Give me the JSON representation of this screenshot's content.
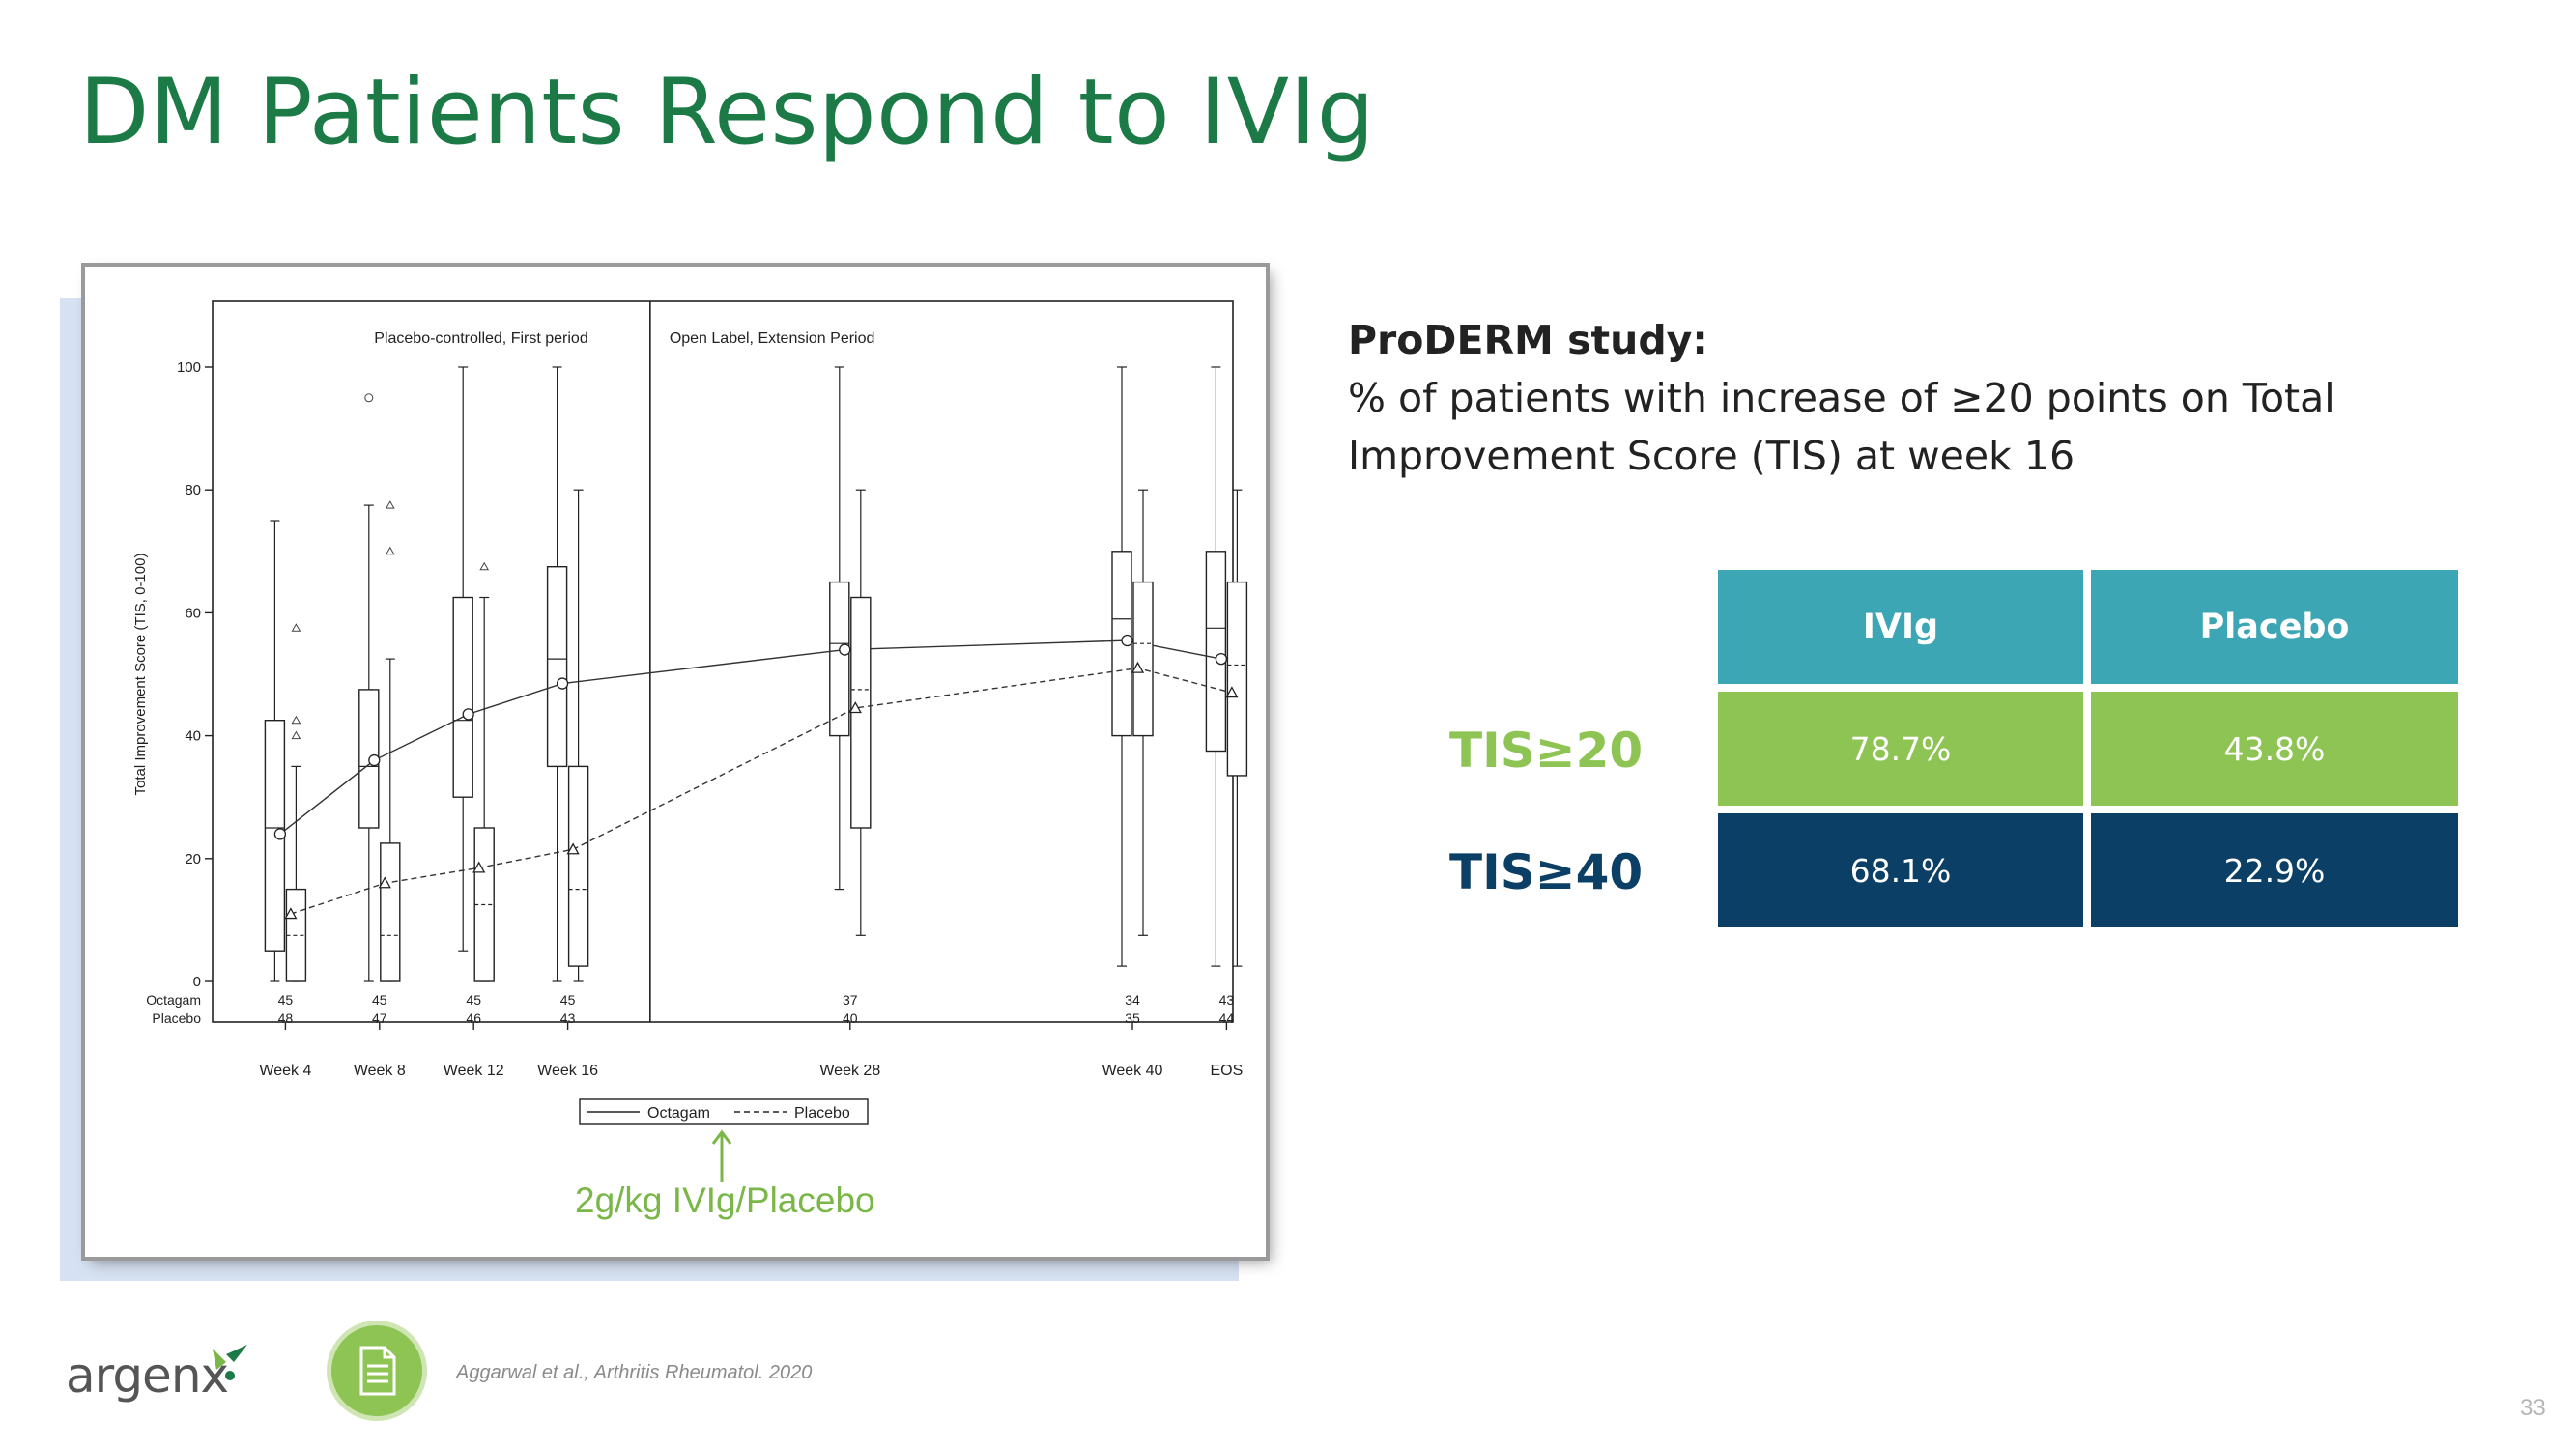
{
  "slide": {
    "title": "DM Patients Respond to IVIg",
    "page_number": "33",
    "logo_text": "argenx",
    "citation": "Aggarwal et al., Arthritis Rheumatol. 2020",
    "doc_icon": "document-icon",
    "annotation": "2g/kg IVIg/Placebo"
  },
  "study": {
    "heading": "ProDERM study:",
    "description": "% of patients with increase of ≥20 points on Total Improvement Score (TIS) at week 16"
  },
  "table": {
    "headers": [
      "IVIg",
      "Placebo"
    ],
    "rows": [
      {
        "label": "TIS≥20",
        "values": [
          "78.7%",
          "43.8%"
        ]
      },
      {
        "label": "TIS≥40",
        "values": [
          "68.1%",
          "22.9%"
        ]
      }
    ]
  },
  "colors": {
    "title_green": "#1b7a45",
    "header_teal": "#3da6b4",
    "row1_green": "#8ec454",
    "row2_navy": "#0c3f66",
    "annotation_green": "#7ab648"
  },
  "chart_data": {
    "type": "box",
    "ylabel": "Total Improvement Score (TIS, 0-100)",
    "ylim": [
      0,
      100
    ],
    "yticks": [
      0,
      20,
      40,
      60,
      80,
      100
    ],
    "period_labels": [
      "Placebo-controlled, First period",
      "Open Label, Extension Period"
    ],
    "categories": [
      "Week 4",
      "Week 8",
      "Week 12",
      "Week 16",
      "Week 28",
      "Week 40",
      "EOS"
    ],
    "category_positions": [
      4,
      8,
      12,
      16,
      28,
      40,
      44
    ],
    "period_divider_at": 19.5,
    "legend": [
      "Octagam",
      "Placebo"
    ],
    "n_table": {
      "labels": [
        "Octagam",
        "Placebo"
      ],
      "octagam": [
        45,
        45,
        45,
        45,
        37,
        34,
        43
      ],
      "placebo": [
        48,
        47,
        46,
        43,
        40,
        35,
        44
      ]
    },
    "series": [
      {
        "name": "Octagam",
        "line_style": "solid",
        "marker": "circle",
        "means": [
          24,
          36,
          43.5,
          48.5,
          54,
          55.5,
          52.5
        ],
        "boxes": [
          {
            "min": 0,
            "q1": 5,
            "median": 25,
            "q3": 42.5,
            "max": 75,
            "outliers": []
          },
          {
            "min": 0,
            "q1": 25,
            "median": 35,
            "q3": 47.5,
            "max": 77.5,
            "outliers": [
              95
            ]
          },
          {
            "min": 5,
            "q1": 30,
            "median": 42.5,
            "q3": 62.5,
            "max": 100,
            "outliers": []
          },
          {
            "min": 0,
            "q1": 35,
            "median": 52.5,
            "q3": 67.5,
            "max": 100,
            "outliers": []
          },
          {
            "min": 15,
            "q1": 40,
            "median": 55,
            "q3": 65,
            "max": 100,
            "outliers": []
          },
          {
            "min": 2.5,
            "q1": 40,
            "median": 59,
            "q3": 70,
            "max": 100,
            "outliers": []
          },
          {
            "min": 2.5,
            "q1": 37.5,
            "median": 57.5,
            "q3": 70,
            "max": 100,
            "outliers": []
          }
        ]
      },
      {
        "name": "Placebo",
        "line_style": "dashed",
        "marker": "triangle",
        "means": [
          11,
          16,
          18.5,
          21.5,
          44.5,
          51,
          47
        ],
        "boxes": [
          {
            "min": 0,
            "q1": 0,
            "median": 7.5,
            "q3": 15,
            "max": 35,
            "outliers": [
              40,
              42.5,
              57.5
            ]
          },
          {
            "min": 0,
            "q1": 0,
            "median": 7.5,
            "q3": 22.5,
            "max": 52.5,
            "outliers": [
              70,
              77.5
            ]
          },
          {
            "min": 0,
            "q1": 0,
            "median": 12.5,
            "q3": 25,
            "max": 62.5,
            "outliers": [
              67.5
            ]
          },
          {
            "min": 0,
            "q1": 2.5,
            "median": 15,
            "q3": 35,
            "max": 80,
            "outliers": []
          },
          {
            "min": 7.5,
            "q1": 25,
            "median": 47.5,
            "q3": 62.5,
            "max": 80,
            "outliers": []
          },
          {
            "min": 7.5,
            "q1": 40,
            "median": 55,
            "q3": 65,
            "max": 80,
            "outliers": []
          },
          {
            "min": 2.5,
            "q1": 33.5,
            "median": 51.5,
            "q3": 65,
            "max": 80,
            "outliers": []
          }
        ]
      }
    ]
  }
}
